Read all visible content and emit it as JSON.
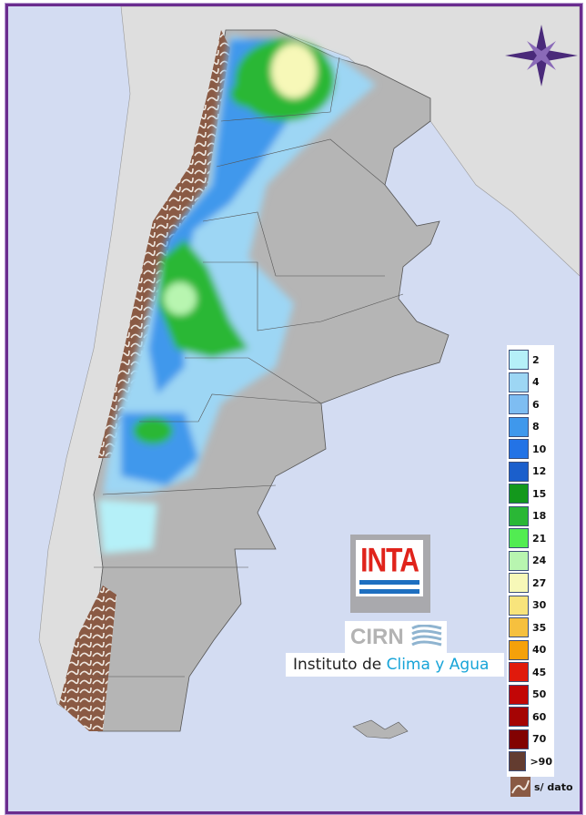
{
  "legend": {
    "items": [
      {
        "label": "2",
        "color": "#b5f0f8"
      },
      {
        "label": "4",
        "color": "#9dd6f4"
      },
      {
        "label": "6",
        "color": "#7ebdf2"
      },
      {
        "label": "8",
        "color": "#3f98ec"
      },
      {
        "label": "10",
        "color": "#2373e6"
      },
      {
        "label": "12",
        "color": "#1b5fcc"
      },
      {
        "label": "15",
        "color": "#13981c"
      },
      {
        "label": "18",
        "color": "#2ab736"
      },
      {
        "label": "21",
        "color": "#52ec52"
      },
      {
        "label": "24",
        "color": "#b8f5b0"
      },
      {
        "label": "27",
        "color": "#f7f8b8"
      },
      {
        "label": "30",
        "color": "#f8e47c"
      },
      {
        "label": "35",
        "color": "#f6c03e"
      },
      {
        "label": "40",
        "color": "#f5a10a"
      },
      {
        "label": "45",
        "color": "#e01a0c"
      },
      {
        "label": "50",
        "color": "#c20606"
      },
      {
        "label": "60",
        "color": "#a50404"
      },
      {
        "label": "70",
        "color": "#820202"
      },
      {
        "label": ">90",
        "color": "#633c30"
      }
    ],
    "no_data_label": "s/ dato",
    "no_data_color": "#8a5a44"
  },
  "logo": {
    "inta": "INTA",
    "cirn": "CIRN",
    "institute_prefix": "Instituto de ",
    "institute_highlight": "Clima y Agua"
  },
  "colors": {
    "ocean": "#d3dcf2",
    "land": "#b8b8b8",
    "neighbors": "#dcdcdc",
    "frame": "#6a2c8e"
  },
  "compass": "compass-rose-icon"
}
